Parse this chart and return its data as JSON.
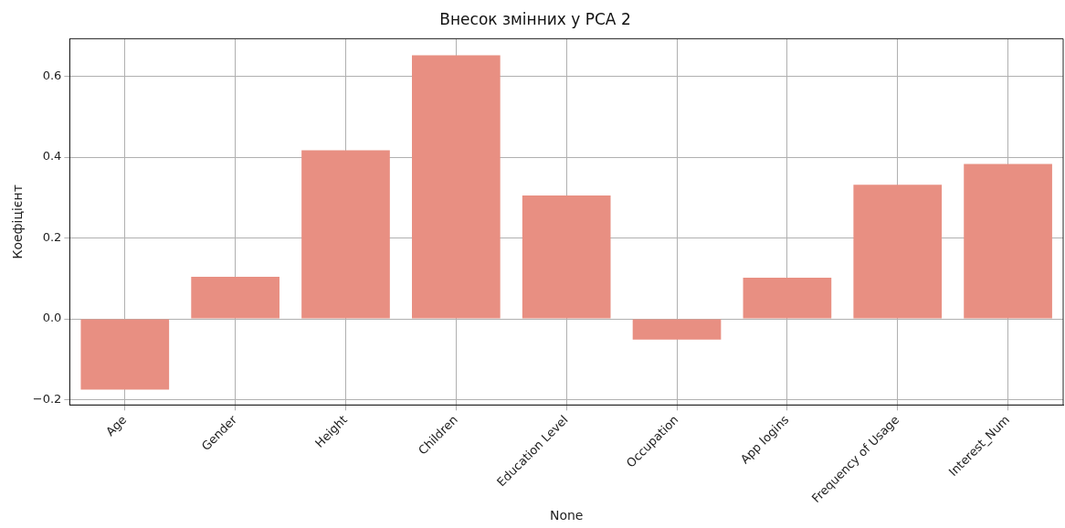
{
  "chart_data": {
    "type": "bar",
    "title": "Внесок змінних у PCA 2",
    "xlabel": "None",
    "ylabel": "Коефіцієнт",
    "categories": [
      "Age",
      "Gender",
      "Height",
      "Children",
      "Education Level",
      "Occupation",
      "App logins",
      "Frequency of Usage",
      "Interest_Num"
    ],
    "values": [
      -0.175,
      0.104,
      0.417,
      0.652,
      0.305,
      -0.051,
      0.102,
      0.332,
      0.383
    ],
    "color": "#e88f82",
    "ylim": [
      -0.213,
      0.693
    ],
    "yticks": [
      {
        "value": -0.2,
        "label": "−0.2"
      },
      {
        "value": 0,
        "label": "0.0"
      },
      {
        "value": 0.2,
        "label": "0.2"
      },
      {
        "value": 0.4,
        "label": "0.4"
      },
      {
        "value": 0.6,
        "label": "0.6"
      }
    ],
    "grid": true,
    "legend": false
  }
}
